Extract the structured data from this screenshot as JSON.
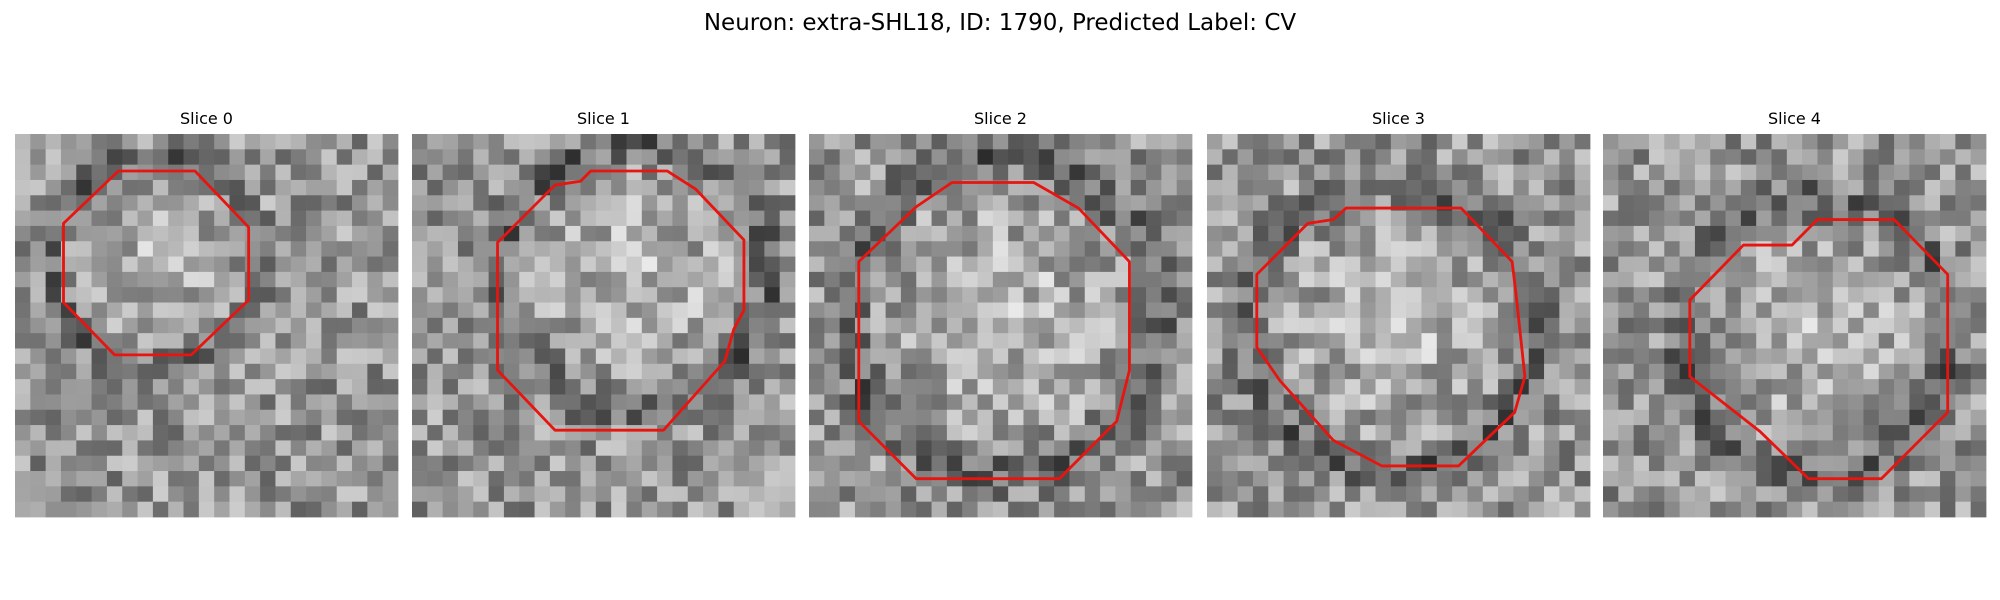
{
  "title": "Neuron: extra-SHL18, ID: 1790, Predicted Label: CV",
  "panels": [
    {
      "title": "Slice 0"
    },
    {
      "title": "Slice 1"
    },
    {
      "title": "Slice 2"
    },
    {
      "title": "Slice 3"
    },
    {
      "title": "Slice 4"
    }
  ]
}
